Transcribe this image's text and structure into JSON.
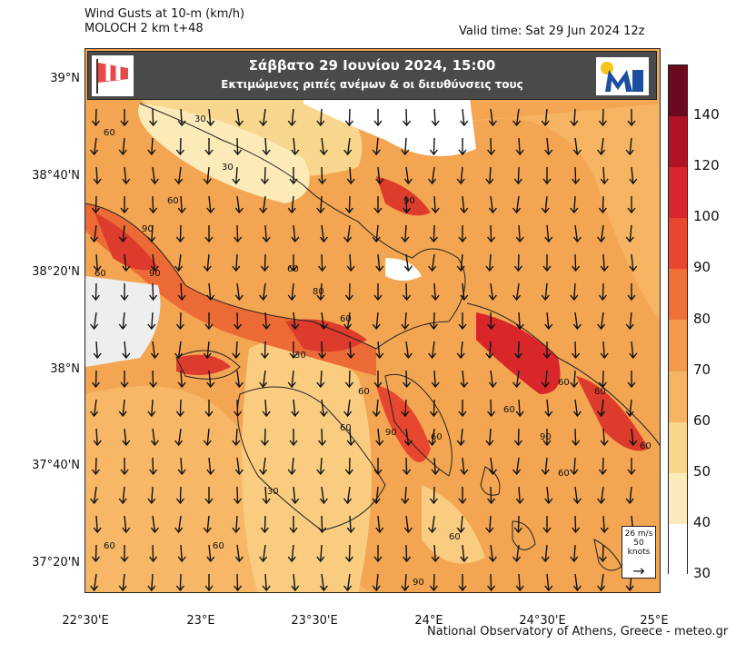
{
  "header": {
    "title": "Wind Gusts at 10-m (km/h)",
    "model": "MOLOCH 2 km t+48",
    "valid": "Valid time: Sat 29 Jun 2024 12z"
  },
  "banner": {
    "line1": "Σάββατο  29 Ιουνίου 2024, 15:00",
    "line2": "Εκτιμώμενες ριπές ανέμων & οι διευθύνσεις τους",
    "logo_icon": "meteo-logo-icon",
    "windsock_icon": "windsock-icon"
  },
  "reference_vector": {
    "line1": "26 m/s",
    "line2": "50 knots",
    "arrow": "→"
  },
  "y_axis": [
    "39°N",
    "38°40'N",
    "38°20'N",
    "38°N",
    "37°40'N",
    "37°20'N"
  ],
  "x_axis": [
    "22°30'E",
    "23°E",
    "23°30'E",
    "24°E",
    "24°30'E",
    "25°E"
  ],
  "colorbar": {
    "labels": [
      "140",
      "120",
      "100",
      "90",
      "80",
      "70",
      "60",
      "50",
      "40",
      "30"
    ],
    "colors": [
      "#6b0a1e",
      "#b01424",
      "#d8262b",
      "#e8472f",
      "#f0703a",
      "#f49a4c",
      "#f6b462",
      "#f9d68d",
      "#fcebb8",
      "#ffffff"
    ]
  },
  "contour_labels": [
    "30",
    "60",
    "30",
    "60",
    "90",
    "60",
    "90",
    "60",
    "30",
    "80",
    "60",
    "90",
    "90",
    "60",
    "60",
    "60",
    "90",
    "60",
    "60",
    "60",
    "60",
    "30",
    "60",
    "60",
    "60",
    "90",
    "60"
  ],
  "footer": "National Observatory of Athens, Greece - meteo.gr"
}
